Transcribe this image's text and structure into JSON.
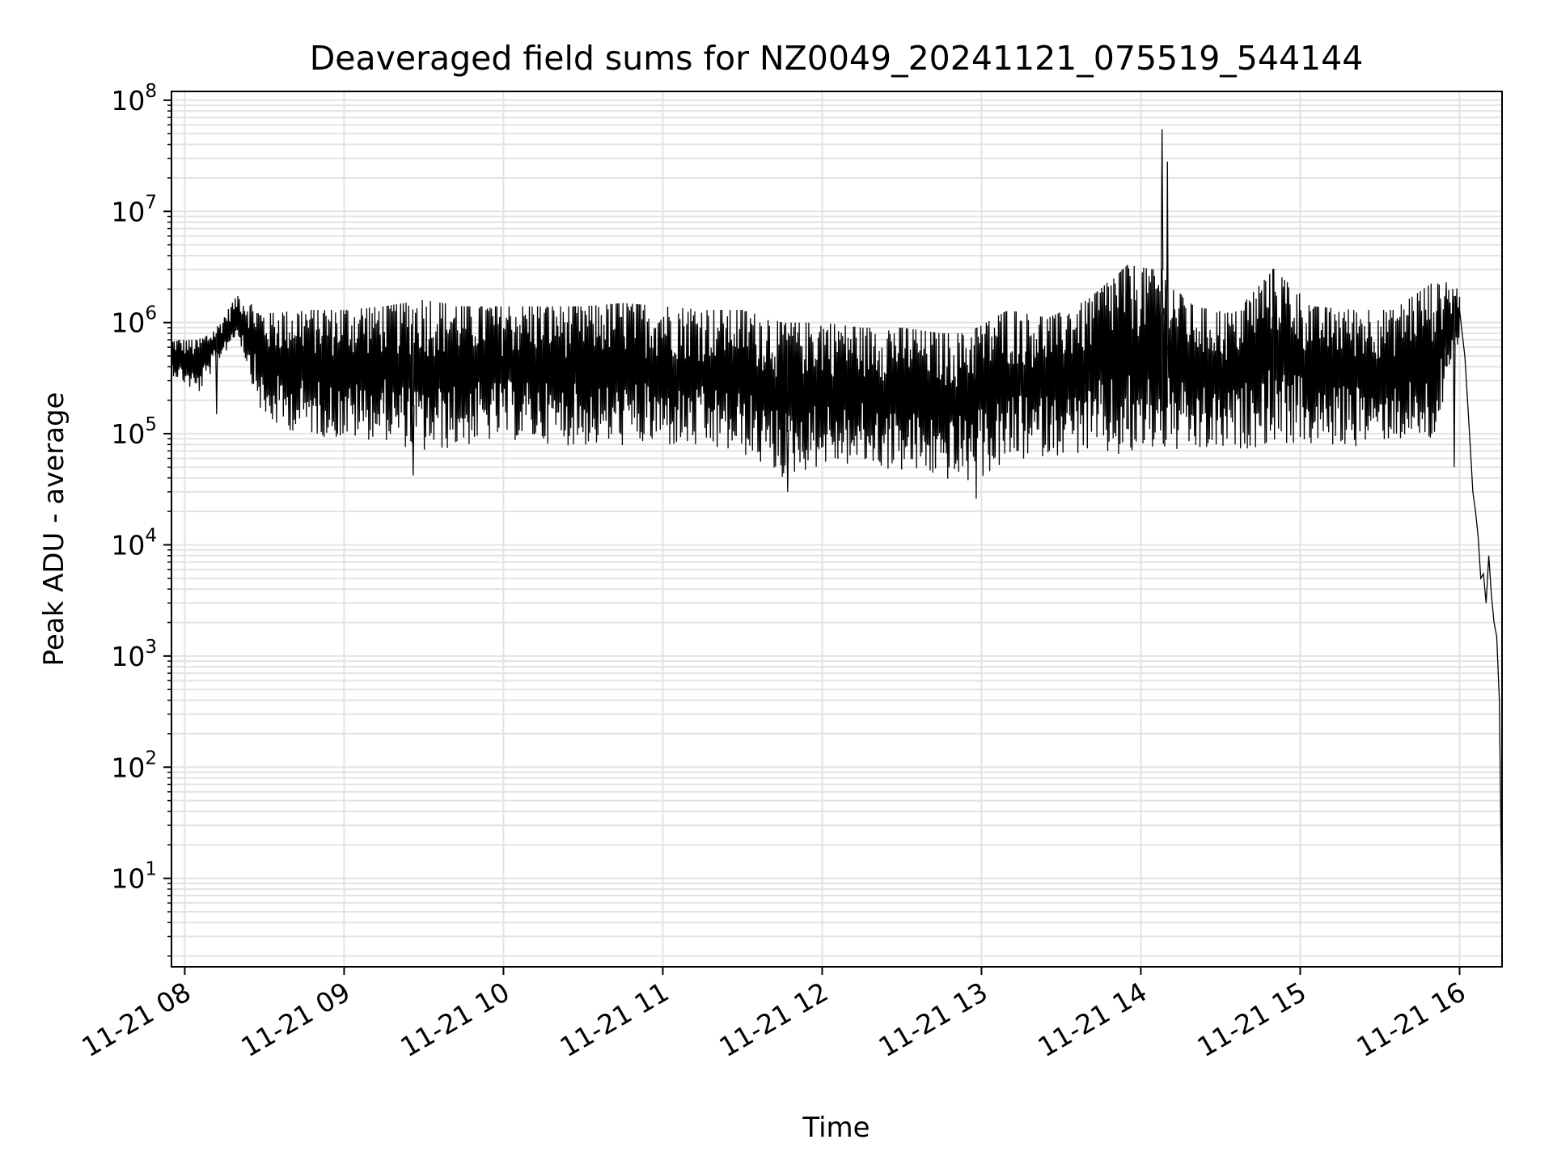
{
  "chart_data": {
    "type": "line",
    "title": "Deaveraged field sums for NZ0049_20241121_075519_544144",
    "xlabel": "Time",
    "ylabel": "Peak ADU - average",
    "yscale": "log",
    "ylim": [
      1.6,
      120000000
    ],
    "xlim": [
      "2024-11-21 07:55",
      "2024-11-21 16:16"
    ],
    "grid": true,
    "legend": "none",
    "line_color": "#000000",
    "x_ticks": [
      "2024-11-21 08:00",
      "2024-11-21 09:00",
      "2024-11-21 10:00",
      "2024-11-21 11:00",
      "2024-11-21 12:00",
      "2024-11-21 13:00",
      "2024-11-21 14:00",
      "2024-11-21 15:00",
      "2024-11-21 16:00"
    ],
    "x_tick_labels": [
      "11-21 08",
      "11-21 09",
      "11-21 10",
      "11-21 11",
      "11-21 12",
      "11-21 13",
      "11-21 14",
      "11-21 15",
      "11-21 16"
    ],
    "y_ticks": [
      10,
      100,
      1000,
      10000,
      100000,
      1000000,
      10000000,
      100000000
    ],
    "y_tick_labels": [
      {
        "base": "10",
        "exp": "1"
      },
      {
        "base": "10",
        "exp": "2"
      },
      {
        "base": "10",
        "exp": "3"
      },
      {
        "base": "10",
        "exp": "4"
      },
      {
        "base": "10",
        "exp": "5"
      },
      {
        "base": "10",
        "exp": "6"
      },
      {
        "base": "10",
        "exp": "7"
      },
      {
        "base": "10",
        "exp": "8"
      }
    ],
    "series": [
      {
        "envelope": [
          {
            "x": "2024-11-21 07:55",
            "high": 700000,
            "low": 320000
          },
          {
            "x": "2024-11-21 08:05",
            "high": 700000,
            "low": 200000
          },
          {
            "x": "2024-11-21 08:12",
            "high": 900000,
            "low": 400000
          },
          {
            "x": "2024-11-21 08:20",
            "high": 1800000,
            "low": 700000
          },
          {
            "x": "2024-11-21 08:30",
            "high": 1200000,
            "low": 100000
          },
          {
            "x": "2024-11-21 08:45",
            "high": 1300000,
            "low": 80000
          },
          {
            "x": "2024-11-21 09:00",
            "high": 1300000,
            "low": 70000
          },
          {
            "x": "2024-11-21 09:15",
            "high": 1400000,
            "low": 70000
          },
          {
            "x": "2024-11-21 09:30",
            "high": 1600000,
            "low": 50000
          },
          {
            "x": "2024-11-21 09:45",
            "high": 1400000,
            "low": 60000
          },
          {
            "x": "2024-11-21 10:00",
            "high": 1400000,
            "low": 70000
          },
          {
            "x": "2024-11-21 10:15",
            "high": 1400000,
            "low": 65000
          },
          {
            "x": "2024-11-21 10:30",
            "high": 1400000,
            "low": 60000
          },
          {
            "x": "2024-11-21 10:45",
            "high": 1500000,
            "low": 60000
          },
          {
            "x": "2024-11-21 11:00",
            "high": 1400000,
            "low": 60000
          },
          {
            "x": "2024-11-21 11:15",
            "high": 1300000,
            "low": 55000
          },
          {
            "x": "2024-11-21 11:30",
            "high": 1300000,
            "low": 50000
          },
          {
            "x": "2024-11-21 11:45",
            "high": 1000000,
            "low": 30000
          },
          {
            "x": "2024-11-21 12:00",
            "high": 1000000,
            "low": 40000
          },
          {
            "x": "2024-11-21 12:15",
            "high": 900000,
            "low": 40000
          },
          {
            "x": "2024-11-21 12:30",
            "high": 900000,
            "low": 35000
          },
          {
            "x": "2024-11-21 12:45",
            "high": 800000,
            "low": 30000
          },
          {
            "x": "2024-11-21 12:55",
            "high": 800000,
            "low": 27000
          },
          {
            "x": "2024-11-21 13:10",
            "high": 1300000,
            "low": 40000
          },
          {
            "x": "2024-11-21 13:25",
            "high": 1100000,
            "low": 50000
          },
          {
            "x": "2024-11-21 13:40",
            "high": 1600000,
            "low": 50000
          },
          {
            "x": "2024-11-21 13:55",
            "high": 3300000,
            "low": 40000
          },
          {
            "x": "2024-11-21 14:05",
            "high": 3000000,
            "low": 50000
          },
          {
            "x": "2024-11-21 14:20",
            "high": 1400000,
            "low": 50000
          },
          {
            "x": "2024-11-21 14:35",
            "high": 1200000,
            "low": 55000
          },
          {
            "x": "2024-11-21 14:50",
            "high": 3000000,
            "low": 60000
          },
          {
            "x": "2024-11-21 15:05",
            "high": 1400000,
            "low": 60000
          },
          {
            "x": "2024-11-21 15:20",
            "high": 1300000,
            "low": 60000
          },
          {
            "x": "2024-11-21 15:35",
            "high": 1300000,
            "low": 70000
          },
          {
            "x": "2024-11-21 15:50",
            "high": 2300000,
            "low": 60000
          },
          {
            "x": "2024-11-21 16:00",
            "high": 2000000,
            "low": 600000
          }
        ],
        "spikes": [
          {
            "x": "2024-11-21 08:12",
            "value": 150000
          },
          {
            "x": "2024-11-21 09:26",
            "value": 42000
          },
          {
            "x": "2024-11-21 11:47",
            "value": 30000
          },
          {
            "x": "2024-11-21 12:58",
            "value": 26000
          },
          {
            "x": "2024-11-21 13:55",
            "value": 3300000
          },
          {
            "x": "2024-11-21 14:08",
            "value": 3000000
          },
          {
            "x": "2024-11-21 14:08",
            "value": 55000000
          },
          {
            "x": "2024-11-21 14:10",
            "value": 28000000
          },
          {
            "x": "2024-11-21 14:50",
            "value": 3000000
          },
          {
            "x": "2024-11-21 15:55",
            "value": 2300000
          },
          {
            "x": "2024-11-21 15:58",
            "value": 50000
          }
        ],
        "tail": [
          {
            "x": "2024-11-21 16:00",
            "y": 1300000
          },
          {
            "x": "2024-11-21 16:01",
            "y": 800000
          },
          {
            "x": "2024-11-21 16:02",
            "y": 500000
          },
          {
            "x": "2024-11-21 16:03",
            "y": 200000
          },
          {
            "x": "2024-11-21 16:04",
            "y": 80000
          },
          {
            "x": "2024-11-21 16:05",
            "y": 30000
          },
          {
            "x": "2024-11-21 16:06",
            "y": 20000
          },
          {
            "x": "2024-11-21 16:07",
            "y": 12000
          },
          {
            "x": "2024-11-21 16:08",
            "y": 5000
          },
          {
            "x": "2024-11-21 16:09",
            "y": 5500
          },
          {
            "x": "2024-11-21 16:10",
            "y": 3000
          },
          {
            "x": "2024-11-21 16:11",
            "y": 8000
          },
          {
            "x": "2024-11-21 16:12",
            "y": 3500
          },
          {
            "x": "2024-11-21 16:13",
            "y": 2000
          },
          {
            "x": "2024-11-21 16:14",
            "y": 1500
          },
          {
            "x": "2024-11-21 16:15",
            "y": 400
          },
          {
            "x": "2024-11-21 16:16",
            "y": 4
          }
        ]
      }
    ]
  }
}
